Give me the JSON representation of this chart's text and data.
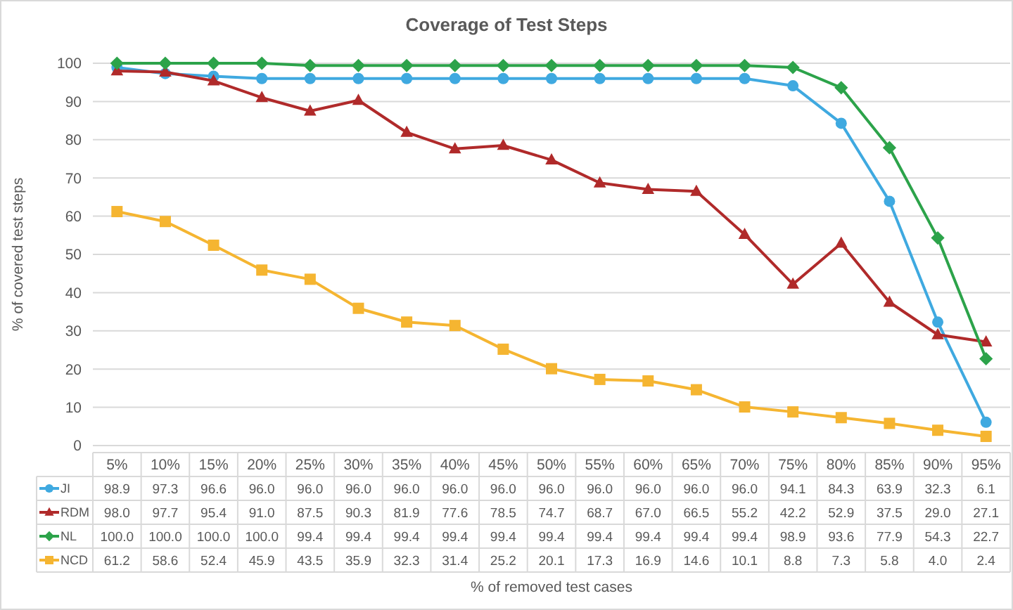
{
  "chart_data": {
    "type": "line",
    "title": "Coverage of Test Steps",
    "annotations": [
      "% of removed test cases"
    ],
    "ylabel": "% of covered test steps",
    "categories": [
      "5%",
      "10%",
      "15%",
      "20%",
      "25%",
      "30%",
      "35%",
      "40%",
      "45%",
      "50%",
      "55%",
      "60%",
      "65%",
      "70%",
      "75%",
      "80%",
      "85%",
      "90%",
      "95%"
    ],
    "ylim": [
      0,
      100
    ],
    "yticks": [
      0,
      10,
      20,
      30,
      40,
      50,
      60,
      70,
      80,
      90,
      100
    ],
    "grid": "y",
    "legend": "bottom",
    "series": [
      {
        "name": "JI",
        "color": "#3fa9e0",
        "marker": "circle",
        "values": [
          98.9,
          97.3,
          96.6,
          96.0,
          96.0,
          96.0,
          96.0,
          96.0,
          96.0,
          96.0,
          96.0,
          96.0,
          96.0,
          96.0,
          94.1,
          84.3,
          63.9,
          32.3,
          6.1
        ],
        "value_labels": [
          "98.9",
          "97.3",
          "96.6",
          "96.0",
          "96.0",
          "96.0",
          "96.0",
          "96.0",
          "96.0",
          "96.0",
          "96.0",
          "96.0",
          "96.0",
          "96.0",
          "94.1",
          "84.3",
          "63.9",
          "32.3",
          "6.1"
        ]
      },
      {
        "name": "RDM",
        "color": "#b02a2a",
        "marker": "triangle",
        "values": [
          98.0,
          97.7,
          95.4,
          91.0,
          87.5,
          90.3,
          81.9,
          77.6,
          78.5,
          74.7,
          68.7,
          67.0,
          66.5,
          55.2,
          42.2,
          52.9,
          37.5,
          29.0,
          27.1
        ],
        "value_labels": [
          "98.0",
          "97.7",
          "95.4",
          "91.0",
          "87.5",
          "90.3",
          "81.9",
          "77.6",
          "78.5",
          "74.7",
          "68.7",
          "67.0",
          "66.5",
          "55.2",
          "42.2",
          "52.9",
          "37.5",
          "29.0",
          "27.1"
        ]
      },
      {
        "name": "NL",
        "color": "#2ca34a",
        "marker": "diamond",
        "values": [
          100.0,
          100.0,
          100.0,
          100.0,
          99.4,
          99.4,
          99.4,
          99.4,
          99.4,
          99.4,
          99.4,
          99.4,
          99.4,
          99.4,
          98.9,
          93.6,
          77.9,
          54.3,
          22.7
        ],
        "value_labels": [
          "100.0",
          "100.0",
          "100.0",
          "100.0",
          "99.4",
          "99.4",
          "99.4",
          "99.4",
          "99.4",
          "99.4",
          "99.4",
          "99.4",
          "99.4",
          "99.4",
          "98.9",
          "93.6",
          "77.9",
          "54.3",
          "22.7"
        ]
      },
      {
        "name": "NCD",
        "color": "#f5b531",
        "marker": "square",
        "values": [
          61.2,
          58.6,
          52.4,
          45.9,
          43.5,
          35.9,
          32.3,
          31.4,
          25.2,
          20.1,
          17.3,
          16.9,
          14.6,
          10.1,
          8.8,
          7.3,
          5.8,
          4.0,
          2.4
        ],
        "value_labels": [
          "61.2",
          "58.6",
          "52.4",
          "45.9",
          "43.5",
          "35.9",
          "32.3",
          "31.4",
          "25.2",
          "20.1",
          "17.3",
          "16.9",
          "14.6",
          "10.1",
          "8.8",
          "7.3",
          "5.8",
          "4.0",
          "2.4"
        ]
      }
    ]
  }
}
